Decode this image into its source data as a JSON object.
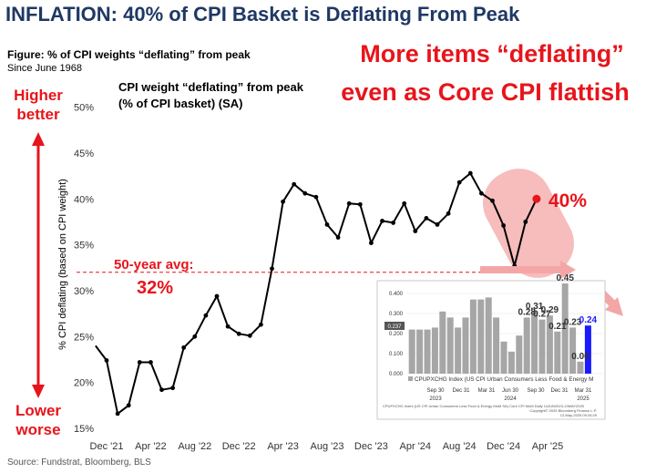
{
  "header": {
    "title": "INFLATION: 40% of CPI Basket is Deflating From Peak",
    "figure_title": "Figure: % of CPI weights “deflating” from peak",
    "figure_subtitle": "Since June 1968",
    "source": "Source: Fundstrat, Bloomberg, BLS"
  },
  "callouts": {
    "headline_line1": "More items “deflating”",
    "headline_line2": "even as Core CPI flattish",
    "higher_line1": "Higher",
    "higher_line2": "better",
    "lower_line1": "Lower",
    "lower_line2": "worse",
    "avg_label": "50-year avg:",
    "avg_value": "32%",
    "last_value": "40%"
  },
  "colors": {
    "accent_red": "#e8141b",
    "title_navy": "#1f3864",
    "line": "#000000",
    "inset_bar": "#a6a6a6",
    "inset_highlight": "#1a1aff"
  },
  "chart_data": [
    {
      "type": "line",
      "title_line1": "CPI weight “deflating” from peak",
      "title_line2": "(% of CPI basket)  (SA)",
      "ylabel": "% CPI deflating (based on CPI weight)",
      "xlabel": "",
      "ylim": [
        15,
        50
      ],
      "yticks": [
        15,
        20,
        25,
        30,
        35,
        40,
        45,
        50
      ],
      "ytick_labels": [
        "15%",
        "20%",
        "25%",
        "30%",
        "35%",
        "40%",
        "45%",
        "50%"
      ],
      "xlim": [
        -1,
        41
      ],
      "xticks": [
        0,
        4,
        8,
        12,
        16,
        20,
        24,
        28,
        32,
        36,
        40
      ],
      "xtick_labels": [
        "Dec '21",
        "Apr '22",
        "Aug '22",
        "Dec '22",
        "Apr '23",
        "Aug '23",
        "Dec '23",
        "Apr '24",
        "Aug '24",
        "Dec '24",
        "Apr '25"
      ],
      "grid": false,
      "reference_line": {
        "value": 32,
        "label": "50-year avg: 32%"
      },
      "series": [
        {
          "x": [
            -1,
            0,
            1,
            2,
            3,
            4,
            5,
            6,
            7,
            8,
            9,
            10,
            11,
            12,
            13,
            14,
            15,
            16,
            17,
            18,
            19,
            20,
            21,
            22,
            23,
            24,
            25,
            26,
            27,
            28,
            29,
            30,
            31,
            32,
            33,
            34,
            35,
            36,
            37,
            38,
            39
          ],
          "values": [
            24.0,
            22.4,
            16.6,
            17.5,
            22.2,
            22.2,
            19.2,
            19.4,
            23.8,
            25.0,
            27.3,
            29.4,
            26.1,
            25.3,
            25.1,
            26.3,
            32.4,
            39.7,
            41.6,
            40.6,
            40.2,
            37.2,
            35.8,
            39.5,
            39.4,
            35.2,
            37.6,
            37.4,
            39.5,
            36.5,
            37.9,
            37.2,
            38.4,
            41.8,
            42.8,
            40.6,
            39.8,
            37.1,
            32.7,
            37.5,
            40.0
          ]
        }
      ]
    },
    {
      "type": "bar",
      "title": "",
      "legend": "CPUPXCHG Index (US CPI Urban Consumers Less Food & Energy M",
      "footnote": "CPUPXCHG Index (US CPI Urban Consumers Less Food & Energy MoM SA) Core CPI MoM  Daily 14JUN2023-13MAY2025",
      "copyright": "Copyright© 2025 Bloomberg Finance L.P.",
      "date_stamp": "12-May-2025 09:26:29",
      "ylim": [
        0,
        0.45
      ],
      "yticks": [
        0,
        0.1,
        0.2,
        0.3,
        0.4
      ],
      "ytick_labels": [
        "0.000",
        "0.100",
        "0.200",
        "0.300",
        "0.400"
      ],
      "last_value_label": "0.237",
      "xtick_labels": [
        "Sep 30",
        "Dec 31",
        "Mar 31",
        "Jun 30",
        "Sep 30",
        "Dec 31",
        "Mar 31"
      ],
      "year_labels": [
        "2023",
        "2024",
        "2025"
      ],
      "values": [
        0.22,
        0.22,
        0.22,
        0.23,
        0.31,
        0.28,
        0.23,
        0.28,
        0.37,
        0.37,
        0.38,
        0.28,
        0.16,
        0.11,
        0.19,
        0.28,
        0.31,
        0.27,
        0.29,
        0.21,
        0.45,
        0.23,
        0.06,
        0.24
      ],
      "highlight_index": 23,
      "data_labels": [
        {
          "index": 15,
          "text": "0.28"
        },
        {
          "index": 16,
          "text": "0.31"
        },
        {
          "index": 17,
          "text": "0.27"
        },
        {
          "index": 18,
          "text": "0.29"
        },
        {
          "index": 19,
          "text": "0.21"
        },
        {
          "index": 20,
          "text": "0.45"
        },
        {
          "index": 21,
          "text": "0.23"
        },
        {
          "index": 22,
          "text": "0.06"
        },
        {
          "index": 23,
          "text": "0.24"
        }
      ]
    }
  ]
}
